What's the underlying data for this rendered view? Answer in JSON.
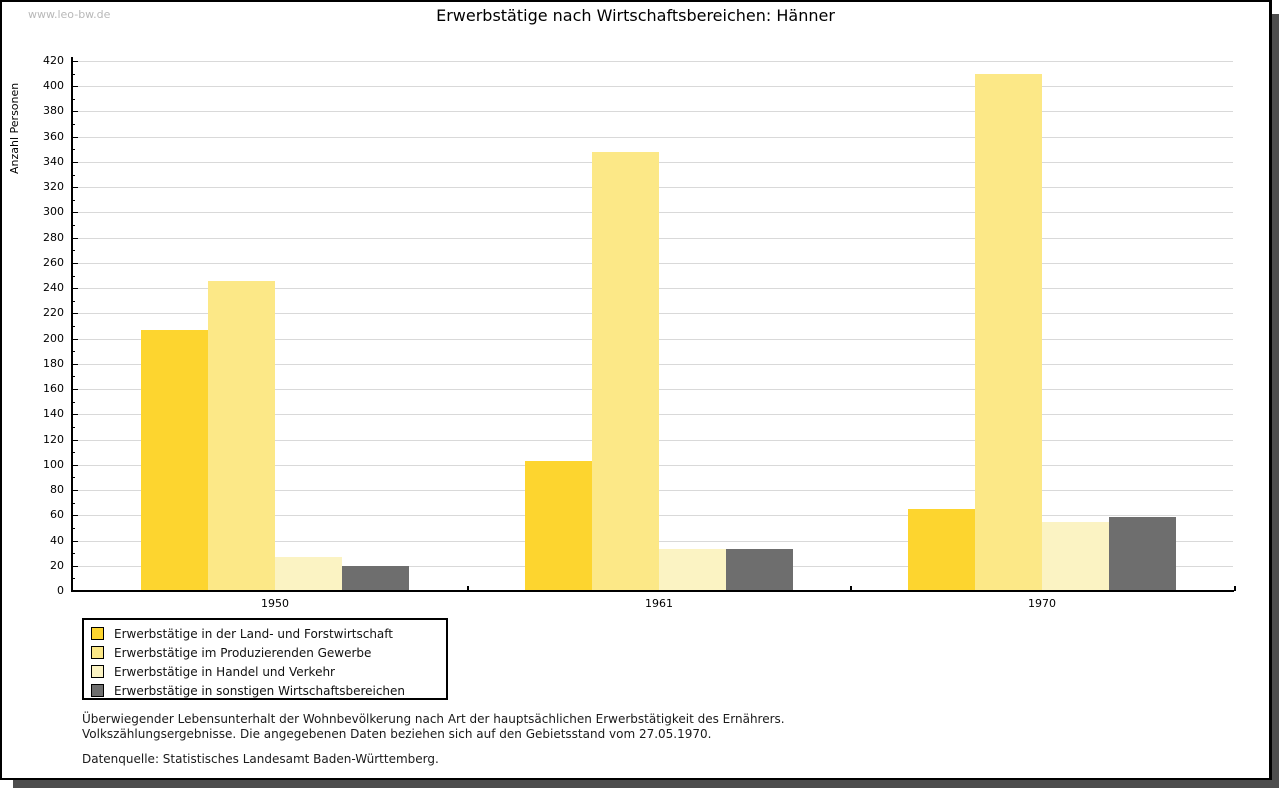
{
  "watermark": "www.leo-bw.de",
  "title": "Erwerbstätige nach Wirtschaftsbereichen: Hänner",
  "chart_data": {
    "type": "bar",
    "title": "Erwerbstätige nach Wirtschaftsbereichen: Hänner",
    "ylabel": "Anzahl Personen",
    "xlabel": "",
    "ylim": [
      0,
      420
    ],
    "ytick_step": 20,
    "grid": true,
    "legend_position": "bottom-left",
    "categories": [
      "1950",
      "1961",
      "1970"
    ],
    "series": [
      {
        "name": "Erwerbstätige in der Land- und Forstwirtschaft",
        "color": "#fdd52f",
        "values": [
          207,
          103,
          65
        ]
      },
      {
        "name": "Erwerbstätige im Produzierenden Gewerbe",
        "color": "#fce887",
        "values": [
          246,
          348,
          410
        ]
      },
      {
        "name": "Erwerbstätige in Handel und Verkehr",
        "color": "#fbf3c3",
        "values": [
          27,
          33,
          55
        ]
      },
      {
        "name": "Erwerbstätige in sonstigen Wirtschaftsbereichen",
        "color": "#6e6e6e",
        "values": [
          20,
          33,
          59
        ]
      }
    ]
  },
  "footer": {
    "note_line1": "Überwiegender Lebensunterhalt der Wohnbevölkerung nach Art der hauptsächlichen Erwerbstätigkeit des Ernährers.",
    "note_line2": "Volkszählungsergebnisse. Die angegebenen Daten beziehen sich auf den Gebietsstand vom 27.05.1970.",
    "source": "Datenquelle: Statistisches Landesamt Baden-Württemberg."
  }
}
